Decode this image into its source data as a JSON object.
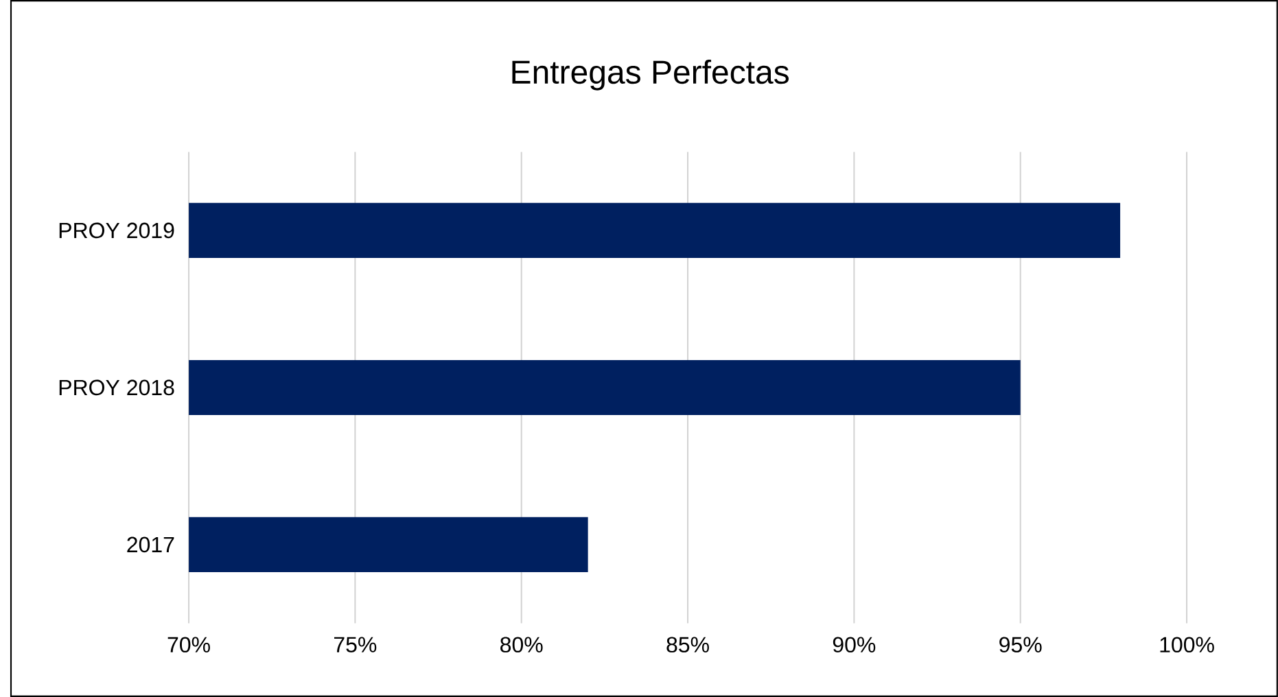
{
  "chart_data": {
    "type": "bar",
    "orientation": "horizontal",
    "title": "Entregas Perfectas",
    "categories": [
      "PROY 2019",
      "PROY 2018",
      "2017"
    ],
    "values": [
      98,
      95,
      82
    ],
    "color": "#002060",
    "xlim": [
      70,
      100
    ],
    "xticks": [
      {
        "value": 70,
        "label": "70%"
      },
      {
        "value": 75,
        "label": "75%"
      },
      {
        "value": 80,
        "label": "80%"
      },
      {
        "value": 85,
        "label": "85%"
      },
      {
        "value": 90,
        "label": "90%"
      },
      {
        "value": 95,
        "label": "95%"
      },
      {
        "value": 100,
        "label": "100%"
      }
    ],
    "grid": "x"
  }
}
